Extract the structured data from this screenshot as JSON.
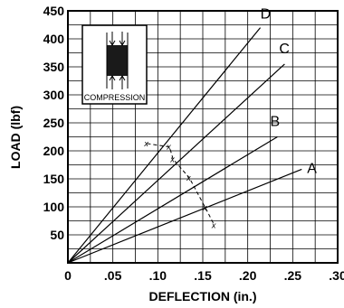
{
  "chart_data": {
    "type": "line",
    "xlabel": "DEFLECTION (in.)",
    "ylabel": "LOAD (lbf)",
    "xlim": [
      0,
      0.3
    ],
    "ylim": [
      0,
      450
    ],
    "grid": true,
    "x_ticks": [
      {
        "value": 0,
        "label": "0"
      },
      {
        "value": 0.05,
        "label": ".05"
      },
      {
        "value": 0.1,
        "label": ".10"
      },
      {
        "value": 0.15,
        "label": ".15"
      },
      {
        "value": 0.2,
        "label": ".20"
      },
      {
        "value": 0.25,
        "label": ".25"
      },
      {
        "value": 0.3,
        "label": ".30"
      }
    ],
    "y_ticks": [
      {
        "value": 50,
        "label": "50"
      },
      {
        "value": 100,
        "label": "100"
      },
      {
        "value": 150,
        "label": "150"
      },
      {
        "value": 200,
        "label": "200"
      },
      {
        "value": 250,
        "label": "250"
      },
      {
        "value": 300,
        "label": "300"
      },
      {
        "value": 350,
        "label": "350"
      },
      {
        "value": 400,
        "label": "400"
      },
      {
        "value": 450,
        "label": "450"
      }
    ],
    "series": [
      {
        "name": "A",
        "x": [
          0,
          0.26
        ],
        "y": [
          0,
          167
        ]
      },
      {
        "name": "B",
        "x": [
          0,
          0.233
        ],
        "y": [
          0,
          225
        ]
      },
      {
        "name": "C",
        "x": [
          0,
          0.241
        ],
        "y": [
          0,
          355
        ]
      },
      {
        "name": "D",
        "x": [
          0,
          0.214
        ],
        "y": [
          0,
          420
        ]
      }
    ],
    "limit_points": {
      "marker": "x",
      "x": [
        0.088,
        0.113,
        0.117,
        0.135,
        0.153,
        0.163
      ],
      "y": [
        213,
        207,
        185,
        152,
        98,
        67
      ]
    },
    "inset": {
      "label": "COMPRESSION"
    }
  }
}
